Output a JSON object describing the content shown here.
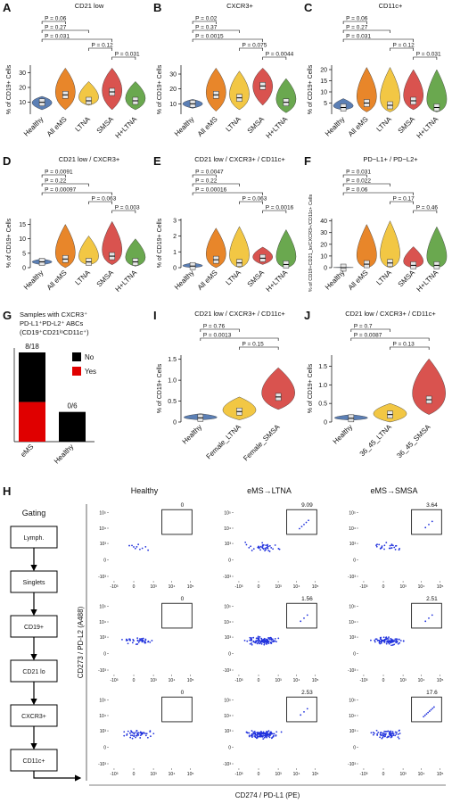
{
  "chart_data": [
    {
      "type": "violin",
      "letter": "A",
      "title": "CD21 low",
      "ylabel": "% of CD19+ Cells",
      "categories": [
        "Healthy",
        "All eMS",
        "LTNA",
        "SMSA",
        "H+LTNA"
      ],
      "colors": [
        "#5b7fb5",
        "#e8862a",
        "#f2c744",
        "#d9534f",
        "#6aa84f"
      ],
      "values": [
        10,
        15,
        11,
        17,
        11
      ],
      "low": [
        5,
        5,
        8,
        5,
        5
      ],
      "high": [
        14,
        33,
        24,
        33,
        24
      ],
      "ylim": [
        2,
        35
      ],
      "yticks": [
        10,
        20,
        30
      ],
      "comparisons": [
        {
          "label": "P = 0.06",
          "groups": [
            0,
            1
          ]
        },
        {
          "label": "P = 0.27",
          "groups": [
            0,
            2
          ]
        },
        {
          "label": "P = 0.031",
          "groups": [
            0,
            3
          ]
        },
        {
          "label": "P = 0.12",
          "groups": [
            2,
            3
          ]
        },
        {
          "label": "P = 0.031",
          "groups": [
            3,
            4
          ]
        }
      ]
    },
    {
      "type": "violin",
      "letter": "B",
      "title": "CXCR3+",
      "ylabel": "% of CD19+ Cells",
      "categories": [
        "Healthy",
        "All eMS",
        "LTNA",
        "SMSA",
        "H+LTNA"
      ],
      "colors": [
        "#5b7fb5",
        "#e8862a",
        "#f2c744",
        "#d9534f",
        "#6aa84f"
      ],
      "values": [
        10,
        16,
        14,
        22,
        11
      ],
      "low": [
        7,
        5,
        6,
        9,
        4
      ],
      "high": [
        13,
        34,
        32,
        34,
        27
      ],
      "ylim": [
        3,
        36
      ],
      "yticks": [
        10,
        20,
        30
      ],
      "comparisons": [
        {
          "label": "P = 0.02",
          "groups": [
            0,
            1
          ]
        },
        {
          "label": "P = 0.37",
          "groups": [
            0,
            2
          ]
        },
        {
          "label": "P = 0.0015",
          "groups": [
            0,
            3
          ]
        },
        {
          "label": "P = 0.075",
          "groups": [
            2,
            3
          ]
        },
        {
          "label": "P = 0.0044",
          "groups": [
            3,
            4
          ]
        }
      ]
    },
    {
      "type": "violin",
      "letter": "C",
      "title": "CD11c+",
      "ylabel": "% of CD19+ Cells",
      "categories": [
        "Healthy",
        "All eMS",
        "LTNA",
        "SMSA",
        "H+LTNA"
      ],
      "colors": [
        "#5b7fb5",
        "#e8862a",
        "#f2c744",
        "#d9534f",
        "#6aa84f"
      ],
      "values": [
        3,
        5,
        4,
        6,
        3
      ],
      "low": [
        2,
        1,
        1,
        2,
        1
      ],
      "high": [
        7,
        21,
        21,
        20,
        20
      ],
      "ylim": [
        0,
        22
      ],
      "yticks": [
        5,
        10,
        15,
        20
      ],
      "comparisons": [
        {
          "label": "P = 0.06",
          "groups": [
            0,
            1
          ]
        },
        {
          "label": "P = 0.27",
          "groups": [
            0,
            2
          ]
        },
        {
          "label": "P = 0.031",
          "groups": [
            0,
            3
          ]
        },
        {
          "label": "P = 0.12",
          "groups": [
            2,
            3
          ]
        },
        {
          "label": "P = 0.031",
          "groups": [
            3,
            4
          ]
        }
      ]
    },
    {
      "type": "violin",
      "letter": "D",
      "title": "CD21 low / CXCR3+",
      "ylabel": "% of CD19+ Cells",
      "categories": [
        "Healthy",
        "All eMS",
        "LTNA",
        "SMSA",
        "H+LTNA"
      ],
      "colors": [
        "#5b7fb5",
        "#e8862a",
        "#f2c744",
        "#d9534f",
        "#6aa84f"
      ],
      "values": [
        2,
        3,
        2,
        4,
        2
      ],
      "low": [
        1,
        0,
        1,
        1,
        0.5
      ],
      "high": [
        3,
        15,
        11,
        16,
        10
      ],
      "ylim": [
        0,
        17
      ],
      "yticks": [
        0,
        5,
        10,
        15
      ],
      "comparisons": [
        {
          "label": "P = 0.0091",
          "groups": [
            0,
            1
          ]
        },
        {
          "label": "P = 0.22",
          "groups": [
            0,
            2
          ]
        },
        {
          "label": "P = 0.00097",
          "groups": [
            0,
            3
          ]
        },
        {
          "label": "P = 0.063",
          "groups": [
            2,
            3
          ]
        },
        {
          "label": "P = 0.003",
          "groups": [
            3,
            4
          ]
        }
      ]
    },
    {
      "type": "violin",
      "letter": "E",
      "title": "CD21 low / CXCR3+ / CD11c+",
      "ylabel": "% of CD19+ Cells",
      "categories": [
        "Healthy",
        "All eMS",
        "LTNA",
        "SMSA",
        "H+LTNA"
      ],
      "colors": [
        "#5b7fb5",
        "#e8862a",
        "#f2c744",
        "#d9534f",
        "#6aa84f"
      ],
      "values": [
        0.1,
        0.5,
        0.3,
        0.6,
        0.2
      ],
      "low": [
        0,
        0,
        0,
        0.2,
        0
      ],
      "high": [
        0.3,
        2.5,
        2.6,
        1.3,
        2.4
      ],
      "ylim": [
        0,
        3.1
      ],
      "yticks": [
        0,
        1,
        2,
        3
      ],
      "comparisons": [
        {
          "label": "P = 0.0047",
          "groups": [
            0,
            1
          ]
        },
        {
          "label": "P = 0.22",
          "groups": [
            0,
            2
          ]
        },
        {
          "label": "P = 0.00016",
          "groups": [
            0,
            3
          ]
        },
        {
          "label": "P = 0.063",
          "groups": [
            2,
            3
          ]
        },
        {
          "label": "P = 0.0016",
          "groups": [
            3,
            4
          ]
        }
      ]
    },
    {
      "type": "violin",
      "letter": "F",
      "title": "PD−L1+ / PD−L2+",
      "ylabel": "% of CD19+CD21_lo/CXCR3+/CD11c+ Cells",
      "categories": [
        "Healthy",
        "All eMS",
        "LTNA",
        "SMSA",
        "H+LTNA"
      ],
      "colors": [
        "#5b7fb5",
        "#e8862a",
        "#f2c744",
        "#d9534f",
        "#6aa84f"
      ],
      "values": [
        0,
        3,
        4,
        2,
        2
      ],
      "low": [
        0,
        0,
        0,
        0,
        0
      ],
      "high": [
        0.5,
        37,
        40,
        18,
        35
      ],
      "ylim": [
        0,
        42
      ],
      "yticks": [
        0,
        10,
        20,
        30,
        40
      ],
      "comparisons": [
        {
          "label": "P = 0.031",
          "groups": [
            0,
            1
          ]
        },
        {
          "label": "P = 0.022",
          "groups": [
            0,
            2
          ]
        },
        {
          "label": "P = 0.06",
          "groups": [
            0,
            3
          ]
        },
        {
          "label": "P = 0.17",
          "groups": [
            2,
            3
          ]
        },
        {
          "label": "P = 0.46",
          "groups": [
            3,
            4
          ]
        }
      ]
    },
    {
      "type": "stacked_bar",
      "letter": "G",
      "title": [
        "Samples with CXCR3⁺",
        "PD-L1⁺PD-L2⁺ ABCs",
        "(CD19⁺CD21ˡᵒCD11c⁺)"
      ],
      "categories": [
        "eMS",
        "Healthy"
      ],
      "series": [
        {
          "name": "Yes",
          "color": "#e00000",
          "values": [
            8,
            0
          ]
        },
        {
          "name": "No",
          "color": "#000000",
          "values": [
            10,
            6
          ]
        }
      ],
      "bar_labels": [
        "8/18",
        "0/6"
      ],
      "legend": "right"
    },
    {
      "type": "violin",
      "letter": "I",
      "title": "CD21 low / CXCR3+ / CD11c+",
      "ylabel": "% of CD19+ Cells",
      "categories": [
        "Healthy",
        "Female_LTNA",
        "Female_SMSA"
      ],
      "colors": [
        "#5b7fb5",
        "#f2c744",
        "#d9534f"
      ],
      "values": [
        0.1,
        0.25,
        0.6
      ],
      "low": [
        0.05,
        0.05,
        0.3
      ],
      "high": [
        0.2,
        0.6,
        1.3
      ],
      "ylim": [
        0,
        1.6
      ],
      "yticks": [
        0,
        0.5,
        {
          "value": 1,
          "label": "1.0"
        },
        1.5
      ],
      "comparisons": [
        {
          "label": "P = 0.76",
          "groups": [
            0,
            1
          ]
        },
        {
          "label": "P = 0.0013",
          "groups": [
            0,
            2
          ]
        },
        {
          "label": "P = 0.15",
          "groups": [
            1,
            2
          ]
        }
      ]
    },
    {
      "type": "violin",
      "letter": "J",
      "title": "CD21 low / CXCR3+ / CD11c+",
      "ylabel": "% of CD19+ Cells",
      "categories": [
        "Healthy",
        "36_45_LTNA",
        "36_45_SMSA"
      ],
      "colors": [
        "#5b7fb5",
        "#f2c744",
        "#d9534f"
      ],
      "values": [
        0.1,
        0.2,
        0.6
      ],
      "low": [
        0.05,
        0,
        0.2
      ],
      "high": [
        0.2,
        0.5,
        1.7
      ],
      "ylim": [
        0,
        1.8
      ],
      "yticks": [
        0,
        0.5,
        {
          "value": 1,
          "label": "1.0"
        },
        1.5
      ],
      "comparisons": [
        {
          "label": "P = 0.7",
          "groups": [
            0,
            1
          ]
        },
        {
          "label": "P = 0.0087",
          "groups": [
            0,
            2
          ]
        },
        {
          "label": "P = 0.13",
          "groups": [
            1,
            2
          ]
        }
      ]
    },
    {
      "type": "flow_grid",
      "letter": "H",
      "gating_title": "Gating",
      "gating_steps": [
        "Lymph.",
        "Singlets",
        "CD19+",
        "CD21 lo",
        "CXCR3+",
        "CD11c+"
      ],
      "columns": [
        "Healthy",
        "eMS→LTNA",
        "eMS→SMSA"
      ],
      "gate_percent": [
        [
          0,
          9.09,
          3.64
        ],
        [
          0,
          1.56,
          2.51
        ],
        [
          0,
          2.53,
          17.6
        ]
      ],
      "xlabel": "CD274 / PD-L1 (PE)",
      "ylabel": "CD273 / PD-L2 (A488)",
      "scale": "biexponential",
      "xlim": [
        -2000,
        200000
      ],
      "ylim": [
        -2000,
        200000
      ],
      "xticks": [
        {
          "value": -1000,
          "label": "-10³"
        },
        0,
        {
          "value": 1000,
          "label": "10³"
        },
        {
          "value": 10000,
          "label": "10⁴"
        },
        {
          "value": 100000,
          "label": "10⁵"
        }
      ],
      "yticks": [
        {
          "value": -1000,
          "label": "-10³"
        },
        0,
        {
          "value": 1000,
          "label": "10³"
        },
        {
          "value": 10000,
          "label": "10⁴"
        },
        {
          "value": 100000,
          "label": "10⁵"
        }
      ]
    }
  ]
}
